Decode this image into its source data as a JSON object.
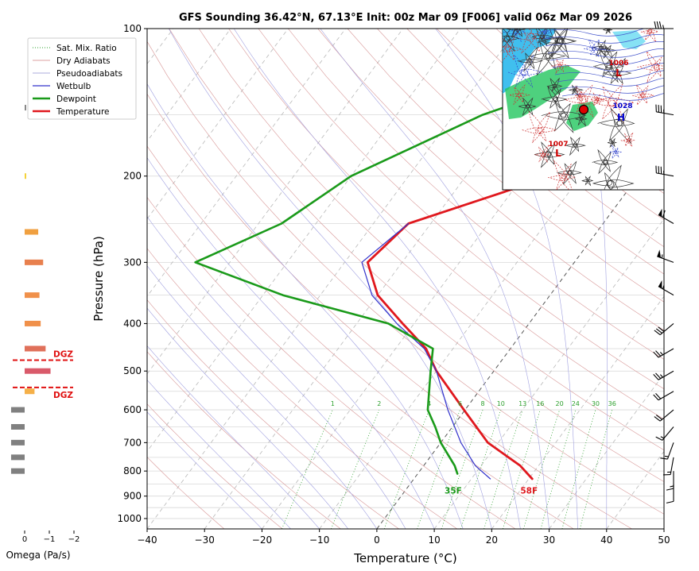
{
  "title": "GFS Sounding 36.42°N, 67.13°E Init: 00z Mar 09 [F006] valid 06z Mar 09 2026",
  "omega_panel": {
    "xlabel": "Omega (Pa/s)",
    "ticks": [
      "0",
      "−1",
      "−2"
    ],
    "tick_values": [
      0,
      -1,
      -2
    ],
    "dgz_label": "DGZ",
    "dgz_levels_hpa": [
      475,
      540
    ],
    "bars": [
      {
        "p": 145,
        "omega": -0.05,
        "color": "#888888"
      },
      {
        "p": 200,
        "omega": -0.05,
        "color": "#f5d23a"
      },
      {
        "p": 260,
        "omega": -0.55,
        "color": "#f0a040"
      },
      {
        "p": 300,
        "omega": -0.75,
        "color": "#e8804e"
      },
      {
        "p": 350,
        "omega": -0.6,
        "color": "#f0904a"
      },
      {
        "p": 400,
        "omega": -0.65,
        "color": "#f0904a"
      },
      {
        "p": 450,
        "omega": -0.85,
        "color": "#e0705a"
      },
      {
        "p": 500,
        "omega": -1.05,
        "color": "#d95a6a"
      },
      {
        "p": 550,
        "omega": -0.4,
        "color": "#f5b048"
      },
      {
        "p": 600,
        "omega": 0.55,
        "color": "#808080"
      },
      {
        "p": 650,
        "omega": 0.55,
        "color": "#808080"
      },
      {
        "p": 700,
        "omega": 0.55,
        "color": "#808080"
      },
      {
        "p": 750,
        "omega": 0.55,
        "color": "#808080"
      },
      {
        "p": 800,
        "omega": 0.55,
        "color": "#808080"
      }
    ]
  },
  "inset_map": {
    "labels": [
      {
        "text": "1006",
        "color": "#cc0000"
      },
      {
        "text": "1028",
        "color": "#0000cc"
      },
      {
        "text": "1007",
        "color": "#cc0000"
      }
    ]
  },
  "chart_data": {
    "type": "skew-t",
    "xlabel": "Temperature (°C)",
    "ylabel": "Pressure (hPa)",
    "xlim": [
      -40,
      50
    ],
    "ylim": [
      1050,
      100
    ],
    "x_ticks": [
      -40,
      -30,
      -20,
      -10,
      0,
      10,
      20,
      30,
      40,
      50
    ],
    "x_tick_labels": [
      "−40",
      "−30",
      "−20",
      "−10",
      "0",
      "10",
      "20",
      "30",
      "40",
      "50"
    ],
    "y_ticks": [
      100,
      200,
      300,
      400,
      500,
      600,
      700,
      800,
      900,
      1000
    ],
    "legend": {
      "placement": "upper-left",
      "entries": [
        {
          "label": "Sat. Mix. Ratio",
          "color": "#2ca02c",
          "style": "dotted"
        },
        {
          "label": "Dry Adiabats",
          "color": "#d08080",
          "style": "solid-thin"
        },
        {
          "label": "Pseudoadiabats",
          "color": "#9090d0",
          "style": "solid-thin"
        },
        {
          "label": "Wetbulb",
          "color": "#3333cc",
          "style": "solid"
        },
        {
          "label": "Dewpoint",
          "color": "#1a9a1a",
          "style": "solid-thick"
        },
        {
          "label": "Temperature",
          "color": "#e0181e",
          "style": "solid-thick"
        }
      ]
    },
    "series": [
      {
        "name": "Temperature",
        "color": "#e0181e",
        "points": [
          [
            100,
            19.7
          ],
          [
            150,
            7.2
          ],
          [
            200,
            -15.0
          ],
          [
            250,
            -33.9
          ],
          [
            300,
            -36.0
          ],
          [
            350,
            -30.0
          ],
          [
            400,
            -22.0
          ],
          [
            450,
            -14.7
          ],
          [
            500,
            -10.0
          ],
          [
            600,
            -0.2
          ],
          [
            700,
            8.2
          ],
          [
            780,
            16.8
          ],
          [
            830,
            20.6
          ]
        ]
      },
      {
        "name": "Wetbulb",
        "color": "#3333cc",
        "points": [
          [
            250,
            -33.9
          ],
          [
            300,
            -37.0
          ],
          [
            350,
            -31.0
          ],
          [
            400,
            -23.0
          ],
          [
            450,
            -15.0
          ],
          [
            500,
            -10.0
          ],
          [
            600,
            -3.0
          ],
          [
            700,
            3.5
          ],
          [
            780,
            9.0
          ],
          [
            830,
            13.3
          ]
        ]
      },
      {
        "name": "Dewpoint",
        "color": "#1a9a1a",
        "points": [
          [
            100,
            -3.0
          ],
          [
            150,
            -35.0
          ],
          [
            200,
            -50.0
          ],
          [
            250,
            -56.0
          ],
          [
            300,
            -66.0
          ],
          [
            350,
            -46.5
          ],
          [
            400,
            -24.5
          ],
          [
            450,
            -13.5
          ],
          [
            500,
            -11.0
          ],
          [
            600,
            -6.5
          ],
          [
            650,
            -3.0
          ],
          [
            700,
            0.0
          ],
          [
            780,
            5.4
          ],
          [
            810,
            6.9
          ]
        ]
      }
    ],
    "surface_labels": [
      {
        "text": "35F",
        "color": "#1a9a1a",
        "p": 850,
        "t": 7.5
      },
      {
        "text": "58F",
        "color": "#e0181e",
        "p": 850,
        "t": 20.7
      }
    ],
    "mixing_ratio_lines": [
      1,
      2,
      4,
      6,
      8,
      10,
      13,
      16,
      20,
      24,
      30,
      36
    ],
    "winds": [
      {
        "p": 100,
        "speed_kt": 35,
        "dir": 270
      },
      {
        "p": 150,
        "speed_kt": 35,
        "dir": 280
      },
      {
        "p": 200,
        "speed_kt": 35,
        "dir": 280
      },
      {
        "p": 250,
        "speed_kt": 60,
        "dir": 300
      },
      {
        "p": 300,
        "speed_kt": 55,
        "dir": 290
      },
      {
        "p": 350,
        "speed_kt": 55,
        "dir": 300
      },
      {
        "p": 400,
        "speed_kt": 30,
        "dir": 230
      },
      {
        "p": 450,
        "speed_kt": 25,
        "dir": 240
      },
      {
        "p": 500,
        "speed_kt": 25,
        "dir": 240
      },
      {
        "p": 550,
        "speed_kt": 20,
        "dir": 240
      },
      {
        "p": 600,
        "speed_kt": 20,
        "dir": 230
      },
      {
        "p": 650,
        "speed_kt": 15,
        "dir": 220
      },
      {
        "p": 700,
        "speed_kt": 15,
        "dir": 200
      },
      {
        "p": 750,
        "speed_kt": 15,
        "dir": 190
      },
      {
        "p": 800,
        "speed_kt": 15,
        "dir": 180
      },
      {
        "p": 850,
        "speed_kt": 10,
        "dir": 180
      }
    ]
  }
}
